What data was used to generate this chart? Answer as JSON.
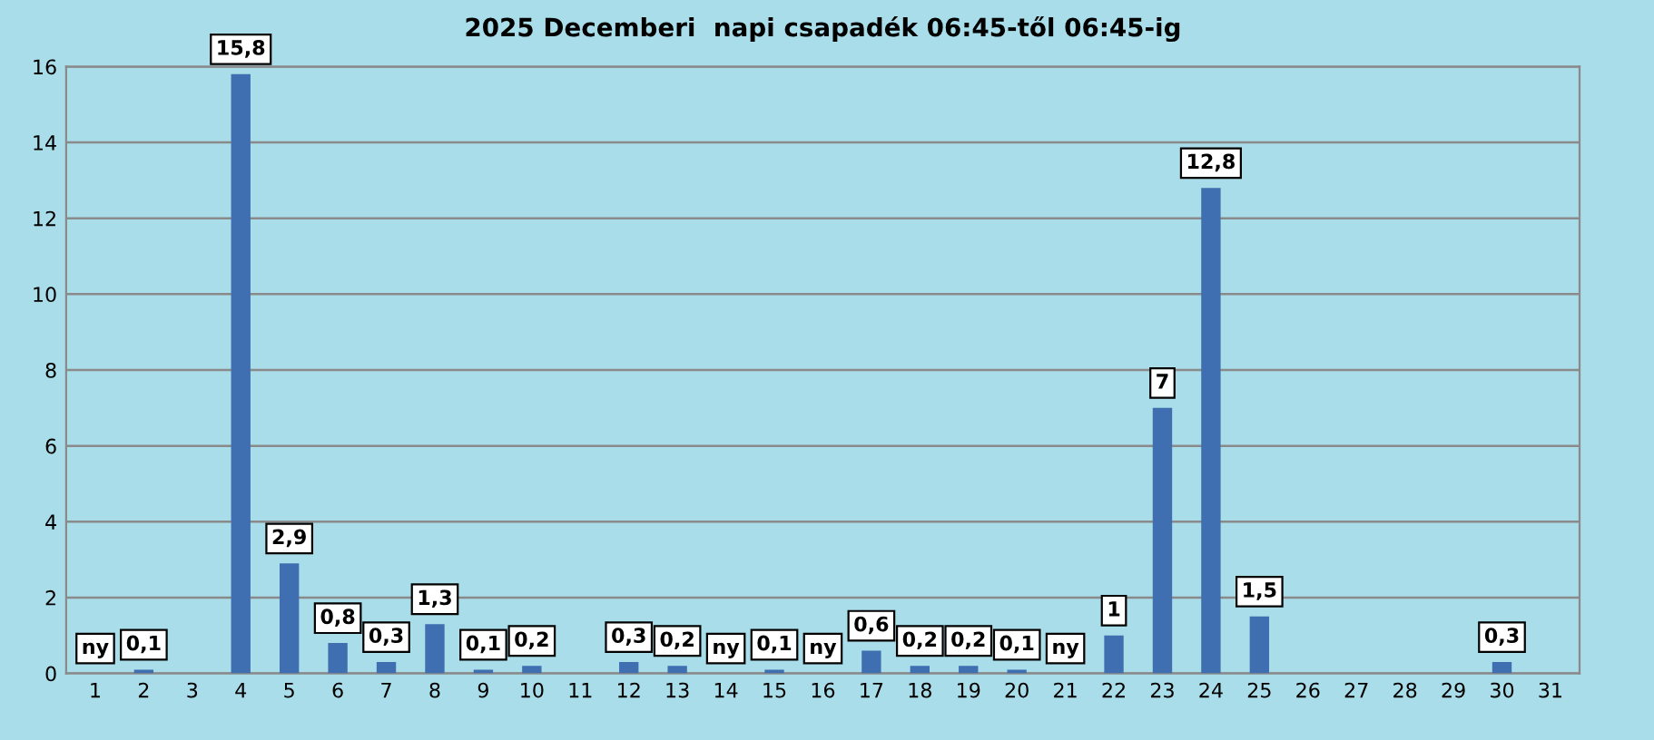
{
  "chart_data": {
    "type": "bar",
    "title": "2025 Decemberi  napi csapadék 06:45-től 06:45-ig",
    "categories": [
      "1",
      "2",
      "3",
      "4",
      "5",
      "6",
      "7",
      "8",
      "9",
      "10",
      "11",
      "12",
      "13",
      "14",
      "15",
      "16",
      "17",
      "18",
      "19",
      "20",
      "21",
      "22",
      "23",
      "24",
      "25",
      "26",
      "27",
      "28",
      "29",
      "30",
      "31"
    ],
    "values": [
      0,
      0.1,
      0,
      15.8,
      2.9,
      0.8,
      0.3,
      1.3,
      0.1,
      0.2,
      0,
      0.3,
      0.2,
      0,
      0.1,
      0,
      0.6,
      0.2,
      0.2,
      0.1,
      0,
      1,
      7,
      12.8,
      1.5,
      0,
      0,
      0,
      0,
      0.3,
      0
    ],
    "value_labels": [
      "ny",
      "0,1",
      null,
      "15,8",
      "2,9",
      "0,8",
      "0,3",
      "1,3",
      "0,1",
      "0,2",
      null,
      "0,3",
      "0,2",
      "ny",
      "0,1",
      "ny",
      "0,6",
      "0,2",
      "0,2",
      "0,1",
      "ny",
      "1",
      "7",
      "12,8",
      "1,5",
      null,
      null,
      null,
      null,
      "0,3",
      null
    ],
    "color": "#3f6fb0",
    "ylim": [
      0,
      16
    ],
    "yticks": [
      0,
      2,
      4,
      6,
      8,
      10,
      12,
      14,
      16
    ],
    "grid": "y"
  }
}
